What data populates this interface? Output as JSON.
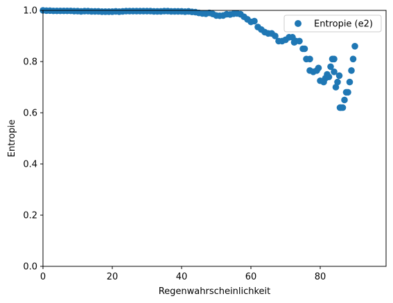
{
  "chart_data": {
    "type": "scatter",
    "xlabel": "Regenwahrscheinlichkeit",
    "ylabel": "Entropie",
    "xlim": [
      0,
      99
    ],
    "ylim": [
      0.0,
      1.0
    ],
    "xticks": [
      "0",
      "20",
      "40",
      "60",
      "80"
    ],
    "xtick_values": [
      0,
      20,
      40,
      60,
      80
    ],
    "yticks": [
      "0.0",
      "0.2",
      "0.4",
      "0.6",
      "0.8",
      "1.0"
    ],
    "ytick_values": [
      0.0,
      0.2,
      0.4,
      0.6,
      0.8,
      1.0
    ],
    "grid": false,
    "legend_position": "upper right",
    "marker_color": "#1f77b4",
    "series": [
      {
        "name": "Entropie (e2)",
        "points": [
          [
            0,
            1.0
          ],
          [
            1,
            0.999
          ],
          [
            2,
            0.999
          ],
          [
            3,
            0.998
          ],
          [
            4,
            0.998
          ],
          [
            5,
            0.998
          ],
          [
            6,
            0.998
          ],
          [
            7,
            0.998
          ],
          [
            8,
            0.998
          ],
          [
            9,
            0.997
          ],
          [
            10,
            0.997
          ],
          [
            11,
            0.996
          ],
          [
            12,
            0.997
          ],
          [
            13,
            0.997
          ],
          [
            14,
            0.996
          ],
          [
            15,
            0.996
          ],
          [
            16,
            0.996
          ],
          [
            17,
            0.995
          ],
          [
            18,
            0.995
          ],
          [
            19,
            0.995
          ],
          [
            20,
            0.995
          ],
          [
            21,
            0.996
          ],
          [
            22,
            0.995
          ],
          [
            23,
            0.996
          ],
          [
            24,
            0.997
          ],
          [
            25,
            0.997
          ],
          [
            26,
            0.997
          ],
          [
            27,
            0.997
          ],
          [
            28,
            0.997
          ],
          [
            29,
            0.997
          ],
          [
            30,
            0.997
          ],
          [
            31,
            0.997
          ],
          [
            32,
            0.996
          ],
          [
            33,
            0.996
          ],
          [
            34,
            0.996
          ],
          [
            35,
            0.997
          ],
          [
            36,
            0.997
          ],
          [
            37,
            0.996
          ],
          [
            38,
            0.996
          ],
          [
            39,
            0.996
          ],
          [
            40,
            0.996
          ],
          [
            41,
            0.995
          ],
          [
            42,
            0.996
          ],
          [
            43,
            0.994
          ],
          [
            44,
            0.993
          ],
          [
            45,
            0.99
          ],
          [
            46,
            0.988
          ],
          [
            47,
            0.987
          ],
          [
            48,
            0.99
          ],
          [
            49,
            0.986
          ],
          [
            50,
            0.98
          ],
          [
            51,
            0.979
          ],
          [
            52,
            0.98
          ],
          [
            53,
            0.985
          ],
          [
            54,
            0.984
          ],
          [
            55,
            0.987
          ],
          [
            56,
            0.988
          ],
          [
            57,
            0.985
          ],
          [
            58,
            0.975
          ],
          [
            59,
            0.965
          ],
          [
            60,
            0.955
          ],
          [
            61,
            0.958
          ],
          [
            62,
            0.935
          ],
          [
            63,
            0.925
          ],
          [
            64,
            0.915
          ],
          [
            65,
            0.91
          ],
          [
            66,
            0.91
          ],
          [
            67,
            0.9
          ],
          [
            68,
            0.88
          ],
          [
            69,
            0.88
          ],
          [
            70,
            0.885
          ],
          [
            71,
            0.895
          ],
          [
            72,
            0.895
          ],
          [
            72.5,
            0.875
          ],
          [
            73,
            0.88
          ],
          [
            74,
            0.88
          ],
          [
            75,
            0.85
          ],
          [
            75.5,
            0.85
          ],
          [
            76,
            0.81
          ],
          [
            77,
            0.81
          ],
          [
            77,
            0.765
          ],
          [
            78,
            0.76
          ],
          [
            79,
            0.765
          ],
          [
            79.5,
            0.775
          ],
          [
            80,
            0.725
          ],
          [
            81,
            0.72
          ],
          [
            81.5,
            0.735
          ],
          [
            82,
            0.75
          ],
          [
            82.5,
            0.74
          ],
          [
            83,
            0.78
          ],
          [
            83.5,
            0.81
          ],
          [
            84,
            0.81
          ],
          [
            84,
            0.76
          ],
          [
            84.5,
            0.7
          ],
          [
            85,
            0.72
          ],
          [
            85.5,
            0.745
          ],
          [
            85.7,
            0.62
          ],
          [
            86,
            0.62
          ],
          [
            86.5,
            0.62
          ],
          [
            87,
            0.65
          ],
          [
            87.5,
            0.68
          ],
          [
            88,
            0.68
          ],
          [
            88.5,
            0.72
          ],
          [
            89,
            0.765
          ],
          [
            89.5,
            0.81
          ],
          [
            90,
            0.86
          ]
        ]
      }
    ]
  }
}
